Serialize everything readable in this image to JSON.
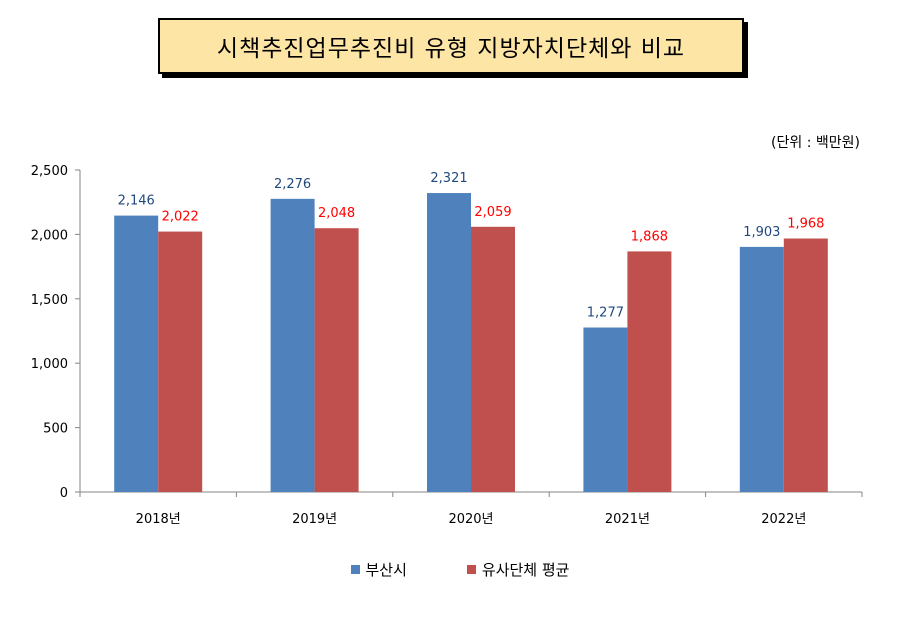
{
  "title": "시책추진업무추진비 유형 지방자치단체와 비교",
  "unit_note": "(단위 : 백만원)",
  "colors": {
    "series1": "#4f81bd",
    "series2": "#c0504d",
    "label1": "#1f497d",
    "label2": "#ff0000"
  },
  "chart_data": {
    "type": "bar",
    "categories": [
      "2018년",
      "2019년",
      "2020년",
      "2021년",
      "2022년"
    ],
    "series": [
      {
        "name": "부산시",
        "values": [
          2146,
          2276,
          2321,
          1277,
          1903
        ],
        "labels": [
          "2,146",
          "2,276",
          "2,321",
          "1,277",
          "1,903"
        ]
      },
      {
        "name": "유사단체 평균",
        "values": [
          2022,
          2048,
          2059,
          1868,
          1968
        ],
        "labels": [
          "2,022",
          "2,048",
          "2,059",
          "1,868",
          "1,968"
        ]
      }
    ],
    "ylim": [
      0,
      2500
    ],
    "yticks": [
      0,
      500,
      1000,
      1500,
      2000,
      2500
    ],
    "ytick_labels": [
      "0",
      "500",
      "1,000",
      "1,500",
      "2,000",
      "2,500"
    ],
    "grid": false,
    "legend_position": "bottom"
  }
}
